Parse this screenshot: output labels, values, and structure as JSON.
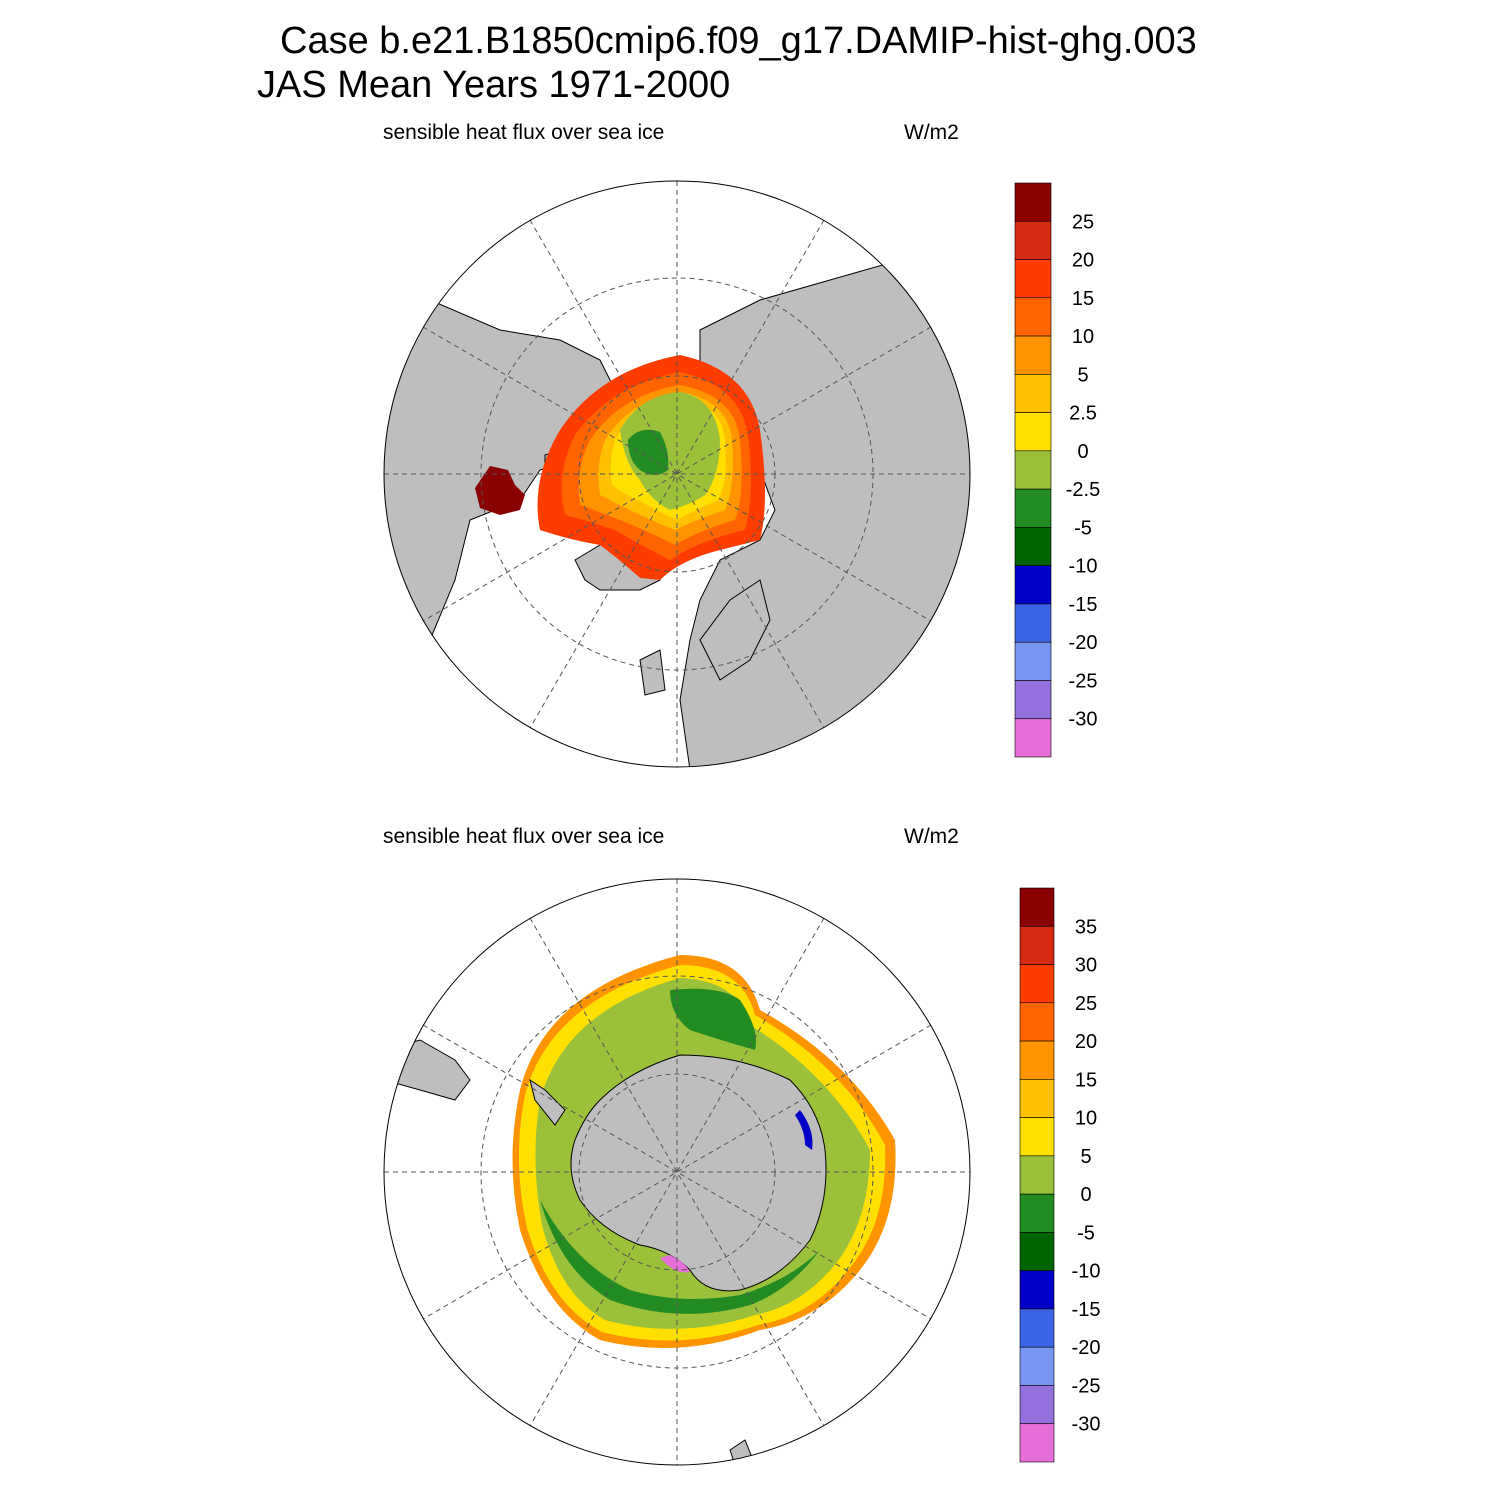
{
  "title_line1": "Case b.e21.B1850cmip6.f09_g17.DAMIP-hist-ghg.003",
  "title_line2": "JAS Mean   Years 1971-2000",
  "panels": [
    {
      "hemisphere": "Northern",
      "field_label": "sensible heat flux over sea ice",
      "units": "W/m2",
      "colorbar": {
        "labels": [
          "25",
          "20",
          "15",
          "10",
          "5",
          "2.5",
          "0",
          "-2.5",
          "-5",
          "-10",
          "-15",
          "-20",
          "-25",
          "-30"
        ],
        "colors": [
          "#8b0000",
          "#d62a12",
          "#ff3c00",
          "#ff6400",
          "#ff9400",
          "#ffc000",
          "#ffe000",
          "#9bc03a",
          "#228b22",
          "#006400",
          "#0000c8",
          "#3c64e6",
          "#7896f0",
          "#9370db",
          "#e66ed8"
        ]
      }
    },
    {
      "hemisphere": "Southern",
      "field_label": "sensible heat flux over sea ice",
      "units": "W/m2",
      "colorbar": {
        "labels": [
          "35",
          "30",
          "25",
          "20",
          "15",
          "10",
          "5",
          "0",
          "-5",
          "-10",
          "-15",
          "-20",
          "-25",
          "-30"
        ],
        "colors": [
          "#8b0000",
          "#d62a12",
          "#ff3c00",
          "#ff6400",
          "#ff9400",
          "#ffc000",
          "#ffe000",
          "#9bc03a",
          "#228b22",
          "#006400",
          "#0000c8",
          "#3c64e6",
          "#7896f0",
          "#9370db",
          "#e66ed8"
        ]
      }
    }
  ],
  "colors": {
    "land": "#bebebe",
    "ocean": "#ffffff",
    "grid": "#555555"
  }
}
